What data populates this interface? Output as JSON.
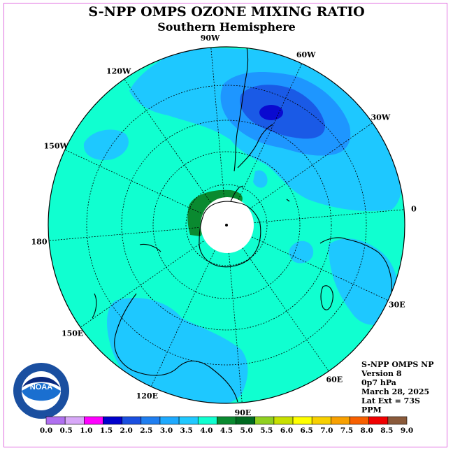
{
  "title": "S-NPP OMPS OZONE MIXING RATIO",
  "subtitle": "Southern Hemisphere",
  "longitude_labels": [
    "90W",
    "60W",
    "30W",
    "0",
    "30E",
    "60E",
    "90E",
    "120E",
    "150E",
    "180",
    "150W",
    "120W"
  ],
  "info": {
    "product": "S-NPP OMPS NP",
    "version": "Version 8",
    "level": "0p7 hPa",
    "date": "March 28, 2025",
    "lat_ext": "Lat Ext = 73S",
    "units": "PPM"
  },
  "logo_text": "NOAA",
  "colorbar": {
    "ticks": [
      "0.0",
      "0.5",
      "1.0",
      "1.5",
      "2.0",
      "2.5",
      "3.0",
      "3.5",
      "4.0",
      "4.5",
      "5.0",
      "5.5",
      "6.0",
      "6.5",
      "7.0",
      "7.5",
      "8.0",
      "8.5",
      "9.0"
    ],
    "colors": [
      "#b070f0",
      "#d8a8f8",
      "#ff00ff",
      "#0000cc",
      "#1a4fe0",
      "#1f7ef0",
      "#1eaaff",
      "#20c8ff",
      "#10ffd0",
      "#0a8a30",
      "#006a20",
      "#90d020",
      "#c8e000",
      "#ffff00",
      "#f8d000",
      "#f8a000",
      "#f86000",
      "#f00000",
      "#8a5a3a"
    ]
  },
  "map_colors": {
    "level_3_5_4": "#10ffd0",
    "level_3_3_5": "#1ec8ff",
    "level_2_5_3": "#1e96ff",
    "level_2_2_5": "#1a5ae6",
    "level_1_5_2": "#0a0ad0",
    "level_4_5_5": "#0a8a30",
    "pole_mask": "#ffffff"
  }
}
